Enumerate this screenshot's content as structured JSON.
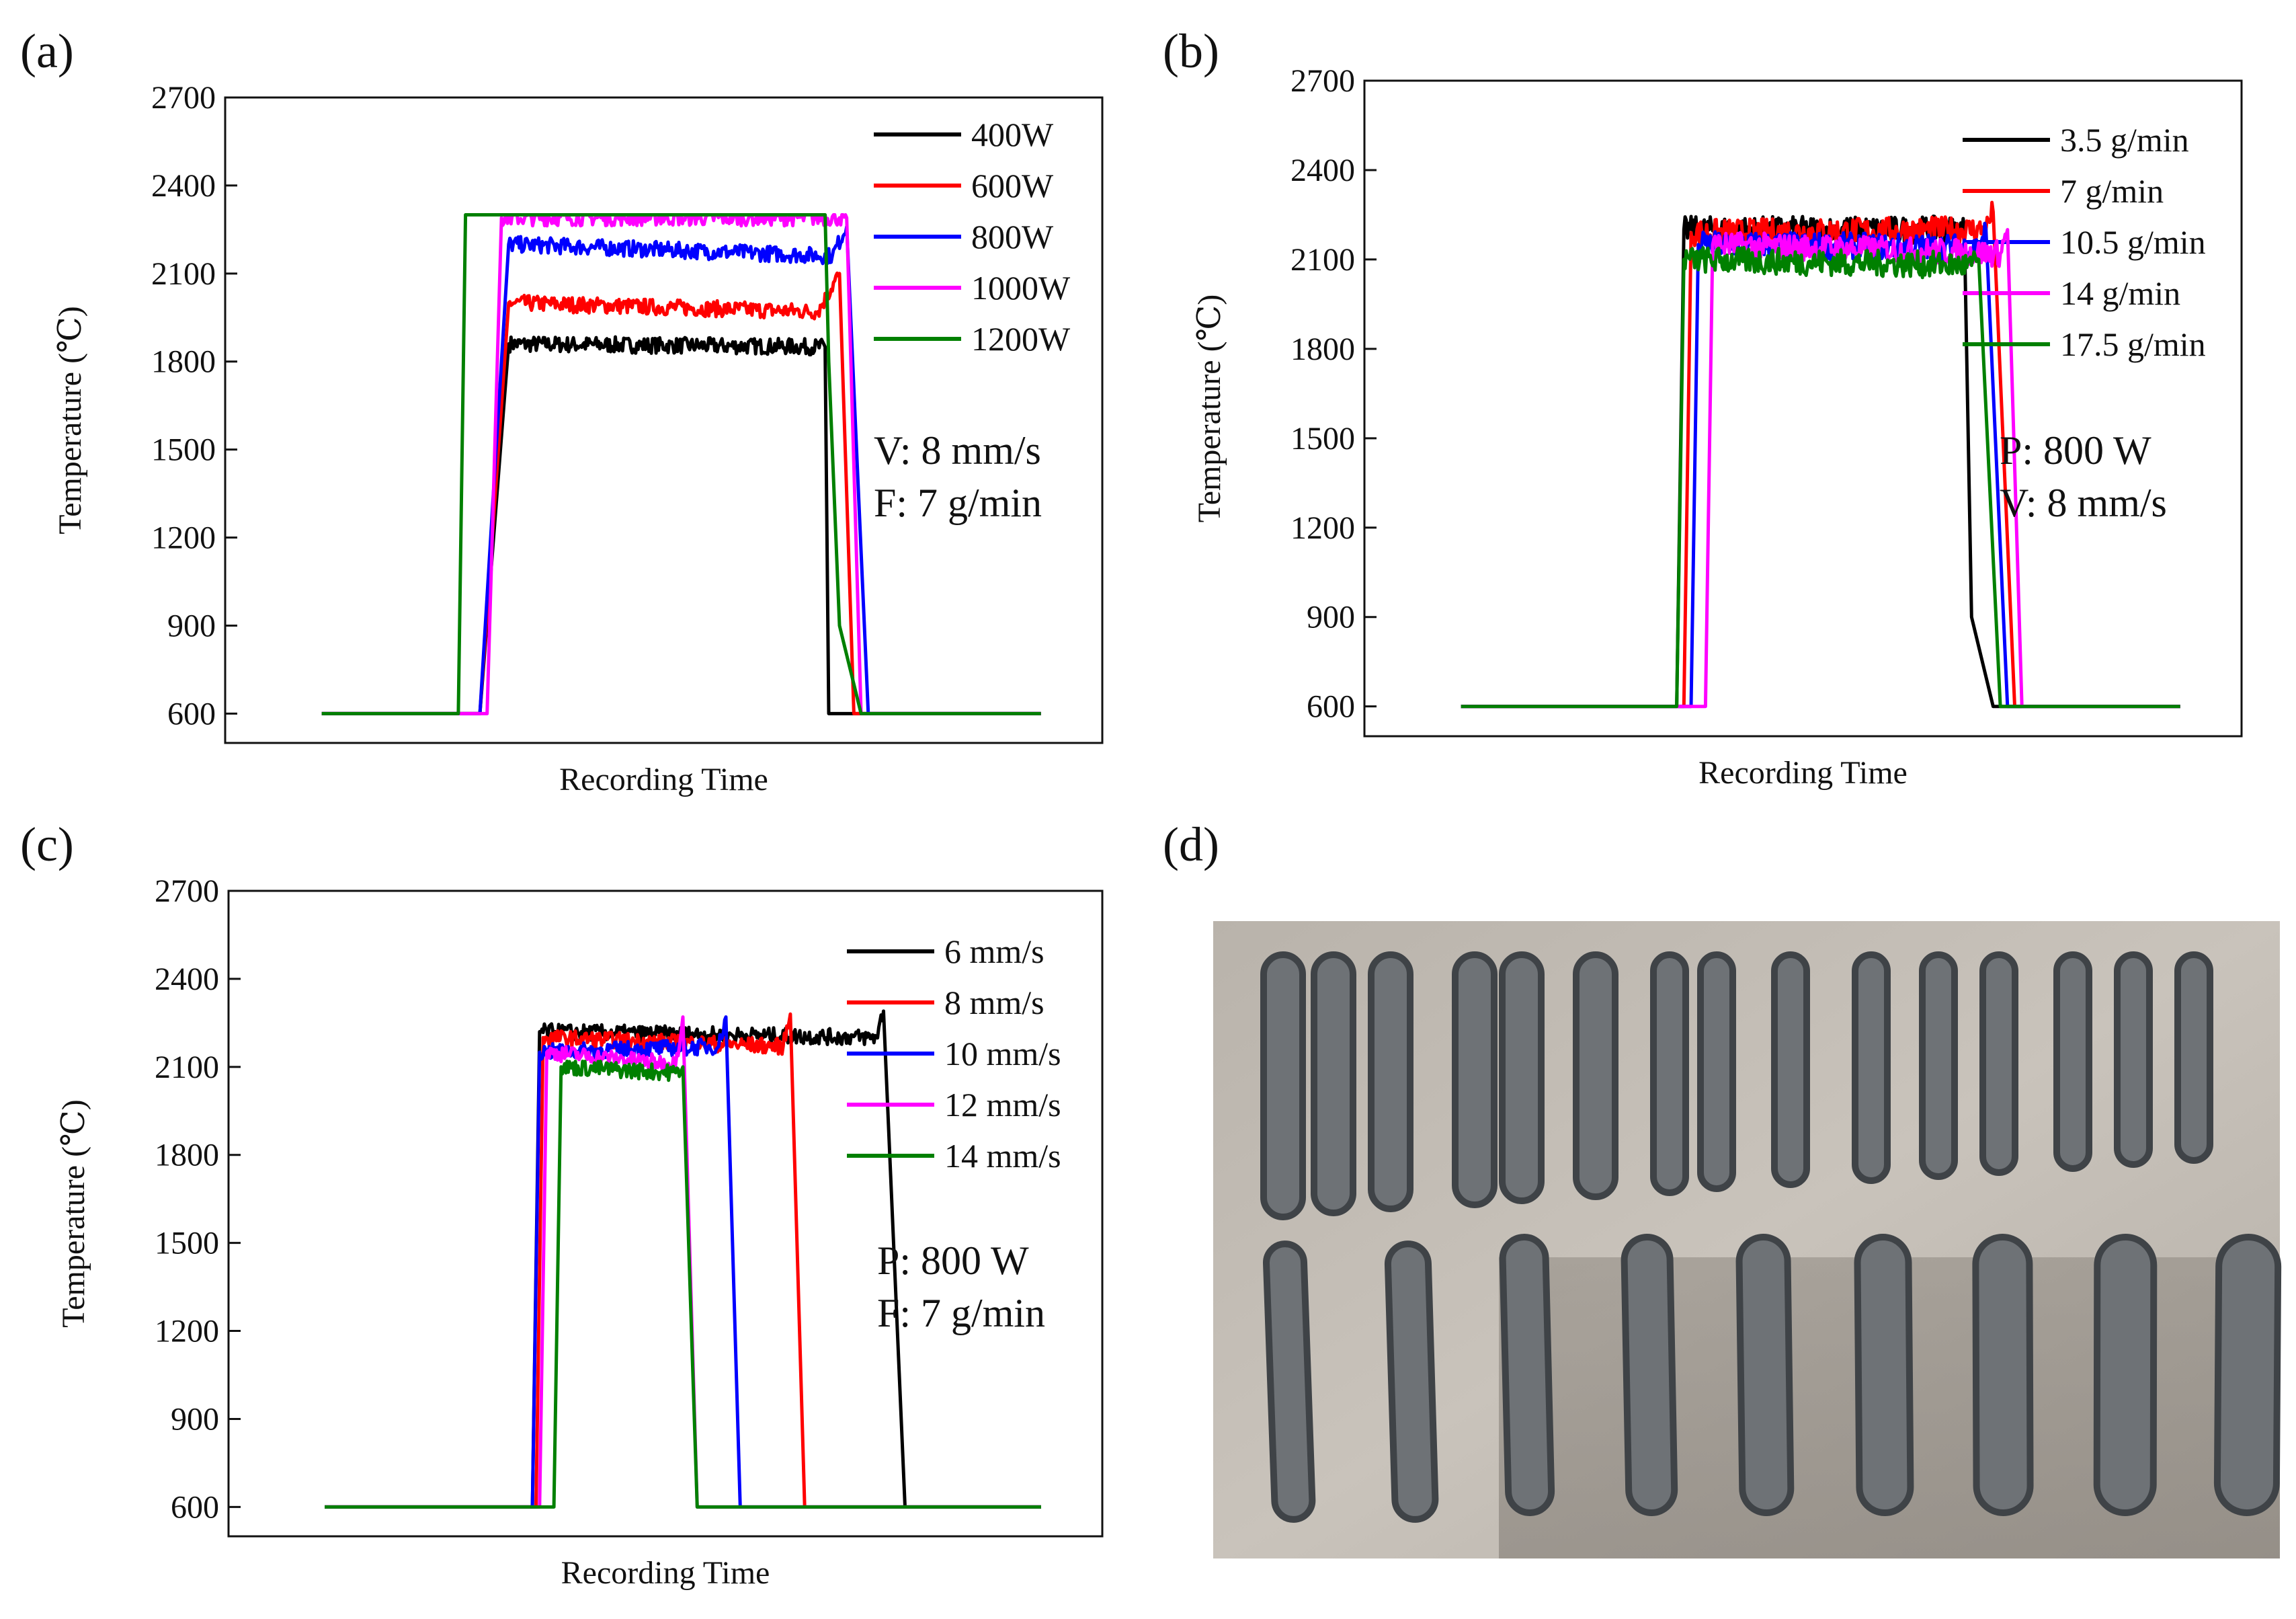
{
  "figure": {
    "panels": [
      "(a)",
      "(b)",
      "(c)",
      "(d)"
    ]
  },
  "chart_data": [
    {
      "type": "line",
      "panel": "(a)",
      "xlabel": "Recording Time",
      "ylabel": "Temperature (℃)",
      "ylim": [
        500,
        2700
      ],
      "yticks": [
        600,
        900,
        1200,
        1500,
        1800,
        2100,
        2400,
        2700
      ],
      "xlim": [
        0,
        100
      ],
      "annotation": [
        "V: 8 mm/s",
        "F: 7 g/min"
      ],
      "series": [
        {
          "name": "400W",
          "color": "#000000",
          "x": [
            0,
            20,
            22,
            26,
            70,
            70.5,
            72,
            100
          ],
          "values": [
            600,
            600,
            600,
            1860,
            1850,
            600,
            600,
            600
          ]
        },
        {
          "name": "600W",
          "color": "#ff0000",
          "x": [
            0,
            20,
            22,
            26,
            69,
            72,
            74,
            100
          ],
          "values": [
            600,
            600,
            600,
            2000,
            1970,
            2100,
            600,
            600
          ]
        },
        {
          "name": "800W",
          "color": "#0000ff",
          "x": [
            0,
            20,
            22,
            26,
            71,
            73,
            76,
            100
          ],
          "values": [
            600,
            600,
            600,
            2200,
            2160,
            2260,
            600,
            600
          ]
        },
        {
          "name": "1000W",
          "color": "#ff00ff",
          "x": [
            0,
            20,
            23,
            25,
            72,
            73,
            75,
            100
          ],
          "values": [
            600,
            600,
            600,
            2290,
            2290,
            2290,
            600,
            600
          ]
        },
        {
          "name": "1200W",
          "color": "#008000",
          "x": [
            0,
            19,
            20,
            70,
            70.5,
            72,
            75,
            100
          ],
          "values": [
            600,
            600,
            2300,
            2300,
            1800,
            900,
            600,
            600
          ]
        }
      ]
    },
    {
      "type": "line",
      "panel": "(b)",
      "xlabel": "Recording Time",
      "ylabel": "Temperature (℃)",
      "ylim": [
        500,
        2700
      ],
      "yticks": [
        600,
        900,
        1200,
        1500,
        1800,
        2100,
        2400,
        2700
      ],
      "xlim": [
        0,
        100
      ],
      "annotation": [
        "P: 800 W",
        "V: 8 mm/s"
      ],
      "series": [
        {
          "name": "3.5 g/min",
          "color": "#000000",
          "x": [
            0,
            30,
            31,
            70,
            71,
            74,
            100
          ],
          "values": [
            600,
            600,
            2200,
            2200,
            900,
            600,
            600
          ]
        },
        {
          "name": "7 g/min",
          "color": "#ff0000",
          "x": [
            0,
            31,
            32,
            73,
            74,
            77,
            100
          ],
          "values": [
            600,
            600,
            2190,
            2200,
            2260,
            600,
            600
          ]
        },
        {
          "name": "10.5 g/min",
          "color": "#0000ff",
          "x": [
            0,
            32,
            33,
            72,
            73,
            76,
            100
          ],
          "values": [
            600,
            600,
            2150,
            2140,
            2200,
            600,
            600
          ]
        },
        {
          "name": "14 g/min",
          "color": "#ff00ff",
          "x": [
            0,
            34,
            35,
            75,
            76,
            78,
            100
          ],
          "values": [
            600,
            600,
            2150,
            2120,
            2200,
            600,
            600
          ]
        },
        {
          "name": "17.5 g/min",
          "color": "#008000",
          "x": [
            0,
            30,
            31,
            71,
            72,
            75,
            100
          ],
          "values": [
            600,
            600,
            2100,
            2080,
            2100,
            600,
            600
          ]
        }
      ]
    },
    {
      "type": "line",
      "panel": "(c)",
      "xlabel": "Recording Time",
      "ylabel": "Temperature (℃)",
      "ylim": [
        500,
        2700
      ],
      "yticks": [
        600,
        900,
        1200,
        1500,
        1800,
        2100,
        2400,
        2700
      ],
      "xlim": [
        0,
        100
      ],
      "annotation": [
        "P: 800 W",
        "F: 7 g/min"
      ],
      "series": [
        {
          "name": "6 mm/s",
          "color": "#000000",
          "x": [
            0,
            29,
            30,
            77,
            78,
            81,
            100
          ],
          "values": [
            600,
            600,
            2220,
            2200,
            2290,
            600,
            600
          ]
        },
        {
          "name": "8 mm/s",
          "color": "#ff0000",
          "x": [
            0,
            29.5,
            30.5,
            64,
            65,
            67,
            100
          ],
          "values": [
            600,
            600,
            2200,
            2170,
            2280,
            600,
            600
          ]
        },
        {
          "name": "10 mm/s",
          "color": "#0000ff",
          "x": [
            0,
            29,
            30,
            55,
            56,
            58,
            100
          ],
          "values": [
            600,
            600,
            2150,
            2170,
            2270,
            600,
            600
          ]
        },
        {
          "name": "12 mm/s",
          "color": "#ff00ff",
          "x": [
            0,
            30,
            31,
            49,
            50,
            52,
            100
          ],
          "values": [
            600,
            600,
            2150,
            2110,
            2270,
            600,
            600
          ]
        },
        {
          "name": "14 mm/s",
          "color": "#008000",
          "x": [
            0,
            32,
            33,
            49,
            50,
            52,
            100
          ],
          "values": [
            600,
            600,
            2100,
            2080,
            2100,
            600,
            600
          ]
        }
      ]
    }
  ]
}
